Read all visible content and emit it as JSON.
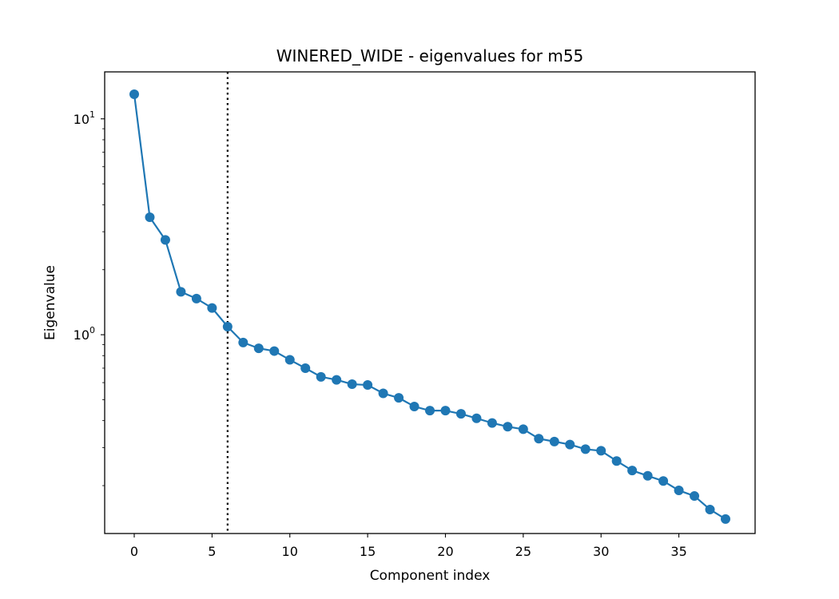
{
  "chart_data": {
    "type": "line",
    "title": "WINERED_WIDE - eigenvalues for m55",
    "xlabel": "Component index",
    "ylabel": "Eigenvalue",
    "xlim": [
      -1.9,
      39.9
    ],
    "ylim": [
      0.12,
      16.5
    ],
    "yscale": "log",
    "grid": false,
    "legend": "none",
    "x_ticks": [
      {
        "value": 0,
        "label": "0"
      },
      {
        "value": 5,
        "label": "5"
      },
      {
        "value": 10,
        "label": "10"
      },
      {
        "value": 15,
        "label": "15"
      },
      {
        "value": 20,
        "label": "20"
      },
      {
        "value": 25,
        "label": "25"
      },
      {
        "value": 30,
        "label": "30"
      },
      {
        "value": 35,
        "label": "35"
      }
    ],
    "y_ticks": [
      {
        "value": 1,
        "base": "10",
        "exp": "0"
      },
      {
        "value": 10,
        "base": "10",
        "exp": "1"
      }
    ],
    "vline": {
      "x": 6,
      "style": "dotted",
      "color": "#000000"
    },
    "series": [
      {
        "color": "#1f77b4",
        "x": [
          0,
          1,
          2,
          3,
          4,
          5,
          6,
          7,
          8,
          9,
          10,
          11,
          12,
          13,
          14,
          15,
          16,
          17,
          18,
          19,
          20,
          21,
          22,
          23,
          24,
          25,
          26,
          27,
          28,
          29,
          30,
          31,
          32,
          33,
          34,
          35,
          36,
          37,
          38
        ],
        "values": [
          13.0,
          3.5,
          2.75,
          1.58,
          1.47,
          1.33,
          1.09,
          0.92,
          0.865,
          0.84,
          0.765,
          0.7,
          0.638,
          0.618,
          0.59,
          0.585,
          0.535,
          0.51,
          0.465,
          0.445,
          0.445,
          0.43,
          0.41,
          0.39,
          0.375,
          0.365,
          0.33,
          0.32,
          0.31,
          0.295,
          0.29,
          0.26,
          0.235,
          0.222,
          0.21,
          0.19,
          0.179,
          0.155,
          0.14
        ]
      }
    ]
  }
}
